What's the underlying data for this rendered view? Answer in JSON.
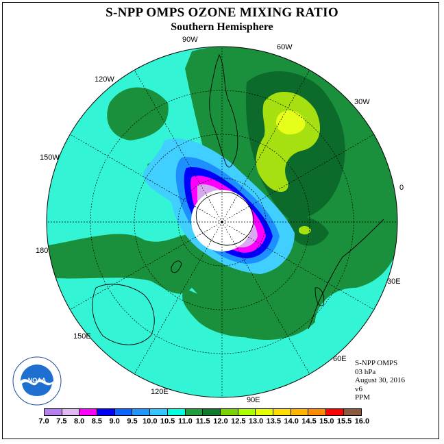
{
  "title": "S-NPP OMPS OZONE MIXING RATIO",
  "subtitle": "Southern Hemisphere",
  "longitude_labels": [
    "90W",
    "60W",
    "30W",
    "0",
    "30E",
    "60E",
    "90E",
    "120E",
    "150E",
    "180",
    "150W",
    "120W"
  ],
  "info": {
    "instrument": "S-NPP OMPS",
    "level": "03 hPa",
    "date": "August 30, 2016",
    "version": "v6",
    "units": "PPM"
  },
  "logo": {
    "name": "NOAA",
    "ring_text": "NATIONAL OCEANIC AND ATMOSPHERIC ADMINISTRATION",
    "ring_text_bottom": "U.S. DEPARTMENT OF COMMERCE"
  },
  "colorbar": {
    "labels": [
      "7.0",
      "7.5",
      "8.0",
      "8.5",
      "9.0",
      "9.5",
      "10.0",
      "10.5",
      "11.0",
      "11.5",
      "12.0",
      "12.5",
      "13.0",
      "13.5",
      "14.0",
      "14.5",
      "15.0",
      "15.5",
      "16.0"
    ],
    "colors": [
      "#b77ff0",
      "#e0b8f4",
      "#ff00ff",
      "#0000ff",
      "#0a64ff",
      "#1e96ff",
      "#32c8ff",
      "#00ffe0",
      "#1e9e3c",
      "#0f7a2e",
      "#7ad200",
      "#aaff00",
      "#e6ff00",
      "#ffdc00",
      "#ffb400",
      "#ff8c00",
      "#ff0000",
      "#8b5a3c"
    ]
  },
  "colors": {
    "background_field": "#33f5d6",
    "dark_green": "#1a8f3c",
    "darker_green": "#0c6a2a",
    "lime": "#a6e010",
    "yellow": "#e6ff1a",
    "light_blue": "#40cfff",
    "mid_blue": "#1e8fff",
    "blue": "#0000ff",
    "magenta": "#ff00ff",
    "lavender": "#d8a8f0"
  }
}
